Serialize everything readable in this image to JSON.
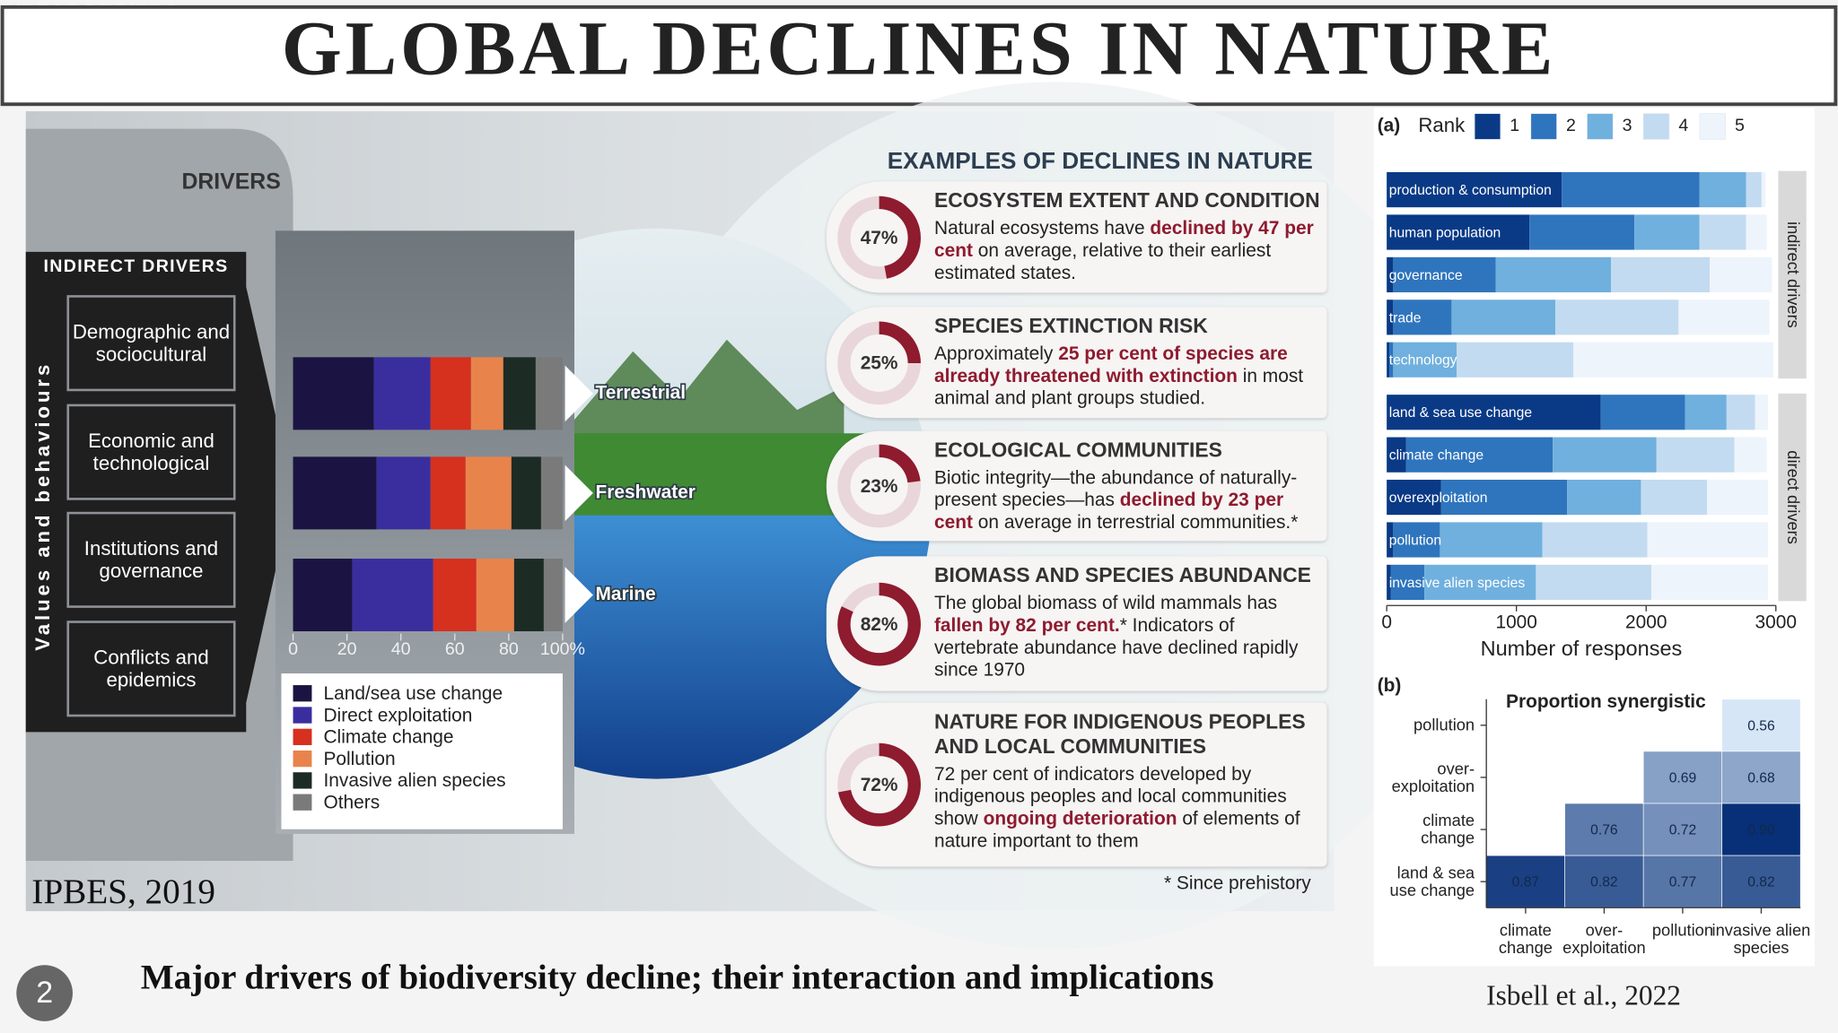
{
  "title": "GLOBAL DECLINES IN NATURE",
  "infographic": {
    "drivers_heading": "DRIVERS",
    "indirect_heading": "INDIRECT DRIVERS",
    "indirect_side_label": "Values and behaviours",
    "indirect_drivers": [
      "Demographic and sociocultural",
      "Economic and technological",
      "Institutions and governance",
      "Conflicts and epidemics"
    ],
    "examples_heading": "EXAMPLES OF DECLINES IN NATURE",
    "cards": [
      {
        "title": "ECOSYSTEM EXTENT AND CONDITION",
        "value": 47,
        "value_label": "47%",
        "text": [
          "Natural ecosystems have ",
          "declined by 47 per cent",
          " on average, relative to their earliest estimated states."
        ]
      },
      {
        "title": "SPECIES EXTINCTION RISK",
        "value": 25,
        "value_label": "25%",
        "text": [
          "Approximately ",
          "25 per cent of species are already threatened with extinction",
          " in most animal and plant groups studied."
        ]
      },
      {
        "title": "ECOLOGICAL COMMUNITIES",
        "value": 23,
        "value_label": "23%",
        "text": [
          "Biotic integrity—the abundance of naturally-present species—has ",
          "declined by 23 per cent",
          " on average in terrestrial communities.*"
        ]
      },
      {
        "title": "BIOMASS AND SPECIES ABUNDANCE",
        "value": 82,
        "value_label": "82%",
        "text": [
          "The global biomass of wild mammals has ",
          "fallen by 82 per cent.",
          "* Indicators of vertebrate abundance have declined rapidly since 1970"
        ]
      },
      {
        "title": "NATURE FOR INDIGENOUS PEOPLES AND LOCAL COMMUNITIES",
        "value": 72,
        "value_label": "72%",
        "text": [
          "72 per cent of indicators developed by indigenous peoples and local communities show ",
          "ongoing deterioration",
          " of elements of nature important to them"
        ]
      }
    ],
    "footnote": "* Since prehistory",
    "source": "IPBES, 2019"
  },
  "chart_data": [
    {
      "type": "bar",
      "orientation": "horizontal",
      "stacked": true,
      "title": "DIRECT DRIVERS",
      "categories": [
        "Terrestrial",
        "Freshwater",
        "Marine"
      ],
      "series": [
        {
          "name": "Land/sea use change",
          "color": "#1b1442",
          "values": [
            30,
            31,
            22
          ]
        },
        {
          "name": "Direct exploitation",
          "color": "#3a2e9e",
          "values": [
            21,
            20,
            30
          ]
        },
        {
          "name": "Climate change",
          "color": "#d6301f",
          "values": [
            15,
            13,
            16
          ]
        },
        {
          "name": "Pollution",
          "color": "#e8844b",
          "values": [
            12,
            17,
            14
          ]
        },
        {
          "name": "Invasive alien species",
          "color": "#1d2b25",
          "values": [
            12,
            11,
            11
          ]
        },
        {
          "name": "Others",
          "color": "#7a7a7a",
          "values": [
            10,
            8,
            7
          ]
        }
      ],
      "xlim": [
        0,
        100
      ],
      "xticks": [
        0,
        20,
        40,
        60,
        80,
        {
          "value": 100,
          "label": "100%"
        }
      ]
    },
    {
      "type": "bar",
      "orientation": "horizontal",
      "stacked": true,
      "label": "(a)",
      "legend_title": "Rank",
      "groups": [
        {
          "name": "indirect drivers",
          "categories": [
            "production & consumption",
            "human population",
            "governance",
            "trade",
            "technology"
          ]
        },
        {
          "name": "direct drivers",
          "categories": [
            "land & sea use change",
            "climate change",
            "overexploitation",
            "pollution",
            "invasive alien species"
          ]
        }
      ],
      "series": [
        {
          "name": "1",
          "color": "#0a3a86",
          "values": [
            1350,
            1100,
            50,
            50,
            20,
            1650,
            150,
            420,
            50,
            30
          ]
        },
        {
          "name": "2",
          "color": "#2f75bd",
          "values": [
            1060,
            810,
            790,
            450,
            30,
            650,
            1130,
            970,
            360,
            260
          ]
        },
        {
          "name": "3",
          "color": "#70b0de",
          "values": [
            360,
            500,
            890,
            800,
            490,
            320,
            800,
            570,
            790,
            860
          ]
        },
        {
          "name": "4",
          "color": "#c3dbf0",
          "values": [
            120,
            360,
            760,
            950,
            900,
            220,
            600,
            510,
            810,
            890
          ]
        },
        {
          "name": "5",
          "color": "#eef4fb",
          "values": [
            30,
            160,
            480,
            700,
            1540,
            100,
            250,
            470,
            930,
            900
          ]
        }
      ],
      "xlabel": "Number of responses",
      "xlim": [
        0,
        3000
      ],
      "xticks": [
        0,
        1000,
        2000,
        3000
      ]
    },
    {
      "type": "heatmap",
      "label": "(b)",
      "title": "Proportion synergistic",
      "rows": [
        "pollution",
        "over-exploitation",
        "climate change",
        "land & sea use change"
      ],
      "columns": [
        "climate change",
        "over-exploitation",
        "pollution",
        "invasive alien species"
      ],
      "values": [
        [
          null,
          null,
          null,
          0.56
        ],
        [
          null,
          null,
          0.69,
          0.68
        ],
        [
          null,
          0.76,
          0.72,
          0.9
        ],
        [
          0.87,
          0.82,
          0.77,
          0.82
        ]
      ],
      "value_labels": [
        [
          null,
          null,
          null,
          "0.56"
        ],
        [
          null,
          null,
          "0.69",
          "0.68"
        ],
        [
          null,
          "0.76",
          "0.72",
          "0.90"
        ],
        [
          "0.87",
          "0.82",
          "0.77",
          "0.82"
        ]
      ]
    }
  ],
  "page_number": 2,
  "caption": "Major drivers of biodiversity decline; their interaction and implications",
  "reference": "Isbell et al., 2022"
}
